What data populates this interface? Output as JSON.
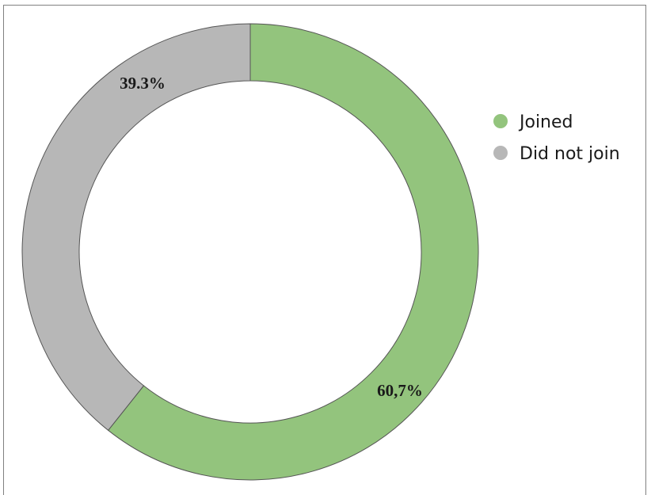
{
  "chart_data": {
    "type": "pie",
    "style": "donut",
    "legend_position": "right",
    "slices": [
      {
        "name": "Joined",
        "value": 60.7,
        "label": "60,7%",
        "color": "#93c47d"
      },
      {
        "name": "Did not join",
        "value": 39.3,
        "label": "39.3%",
        "color": "#b7b7b7"
      }
    ],
    "stroke_color": "#555555"
  }
}
